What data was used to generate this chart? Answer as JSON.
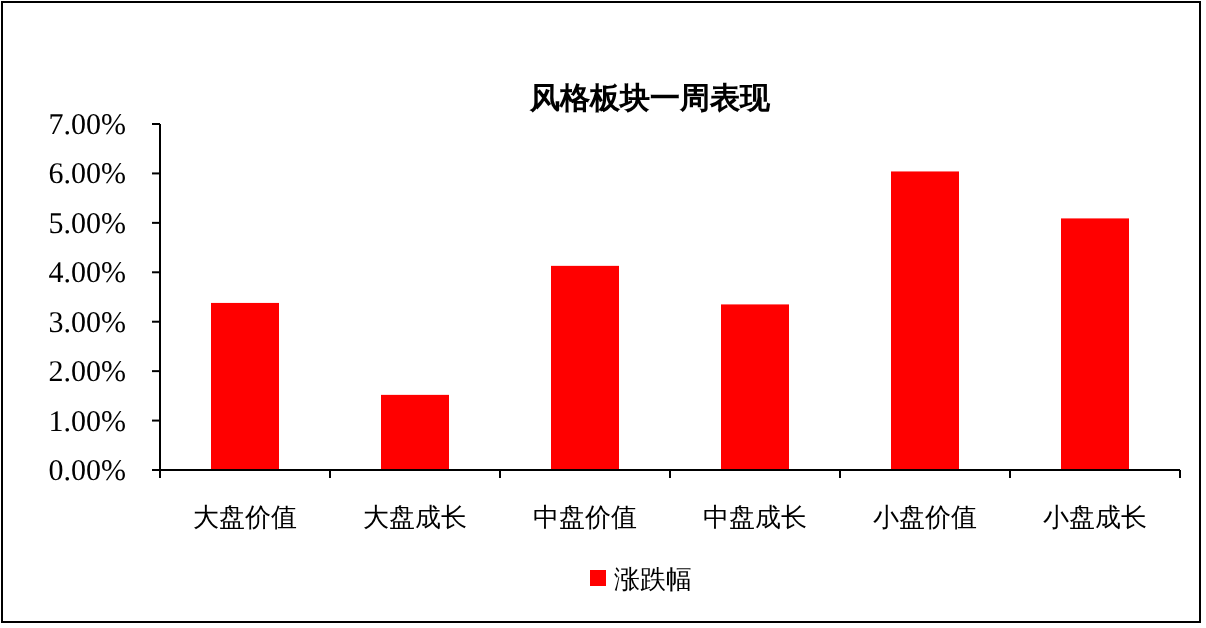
{
  "chart_data": {
    "type": "bar",
    "title": "风格板块一周表现",
    "categories": [
      "大盘价值",
      "大盘成长",
      "中盘价值",
      "中盘成长",
      "小盘价值",
      "小盘成长"
    ],
    "series": [
      {
        "name": "涨跌幅",
        "color": "#ff0000",
        "values": [
          3.38,
          1.52,
          4.13,
          3.35,
          6.04,
          5.09
        ]
      }
    ],
    "ylim": [
      0,
      7
    ],
    "yticks": [
      {
        "value": 0,
        "label": "0.00%"
      },
      {
        "value": 1,
        "label": "1.00%"
      },
      {
        "value": 2,
        "label": "2.00%"
      },
      {
        "value": 3,
        "label": "3.00%"
      },
      {
        "value": 4,
        "label": "4.00%"
      },
      {
        "value": 5,
        "label": "5.00%"
      },
      {
        "value": 6,
        "label": "6.00%"
      },
      {
        "value": 7,
        "label": "7.00%"
      }
    ],
    "grid": false,
    "legend": "bottom"
  }
}
